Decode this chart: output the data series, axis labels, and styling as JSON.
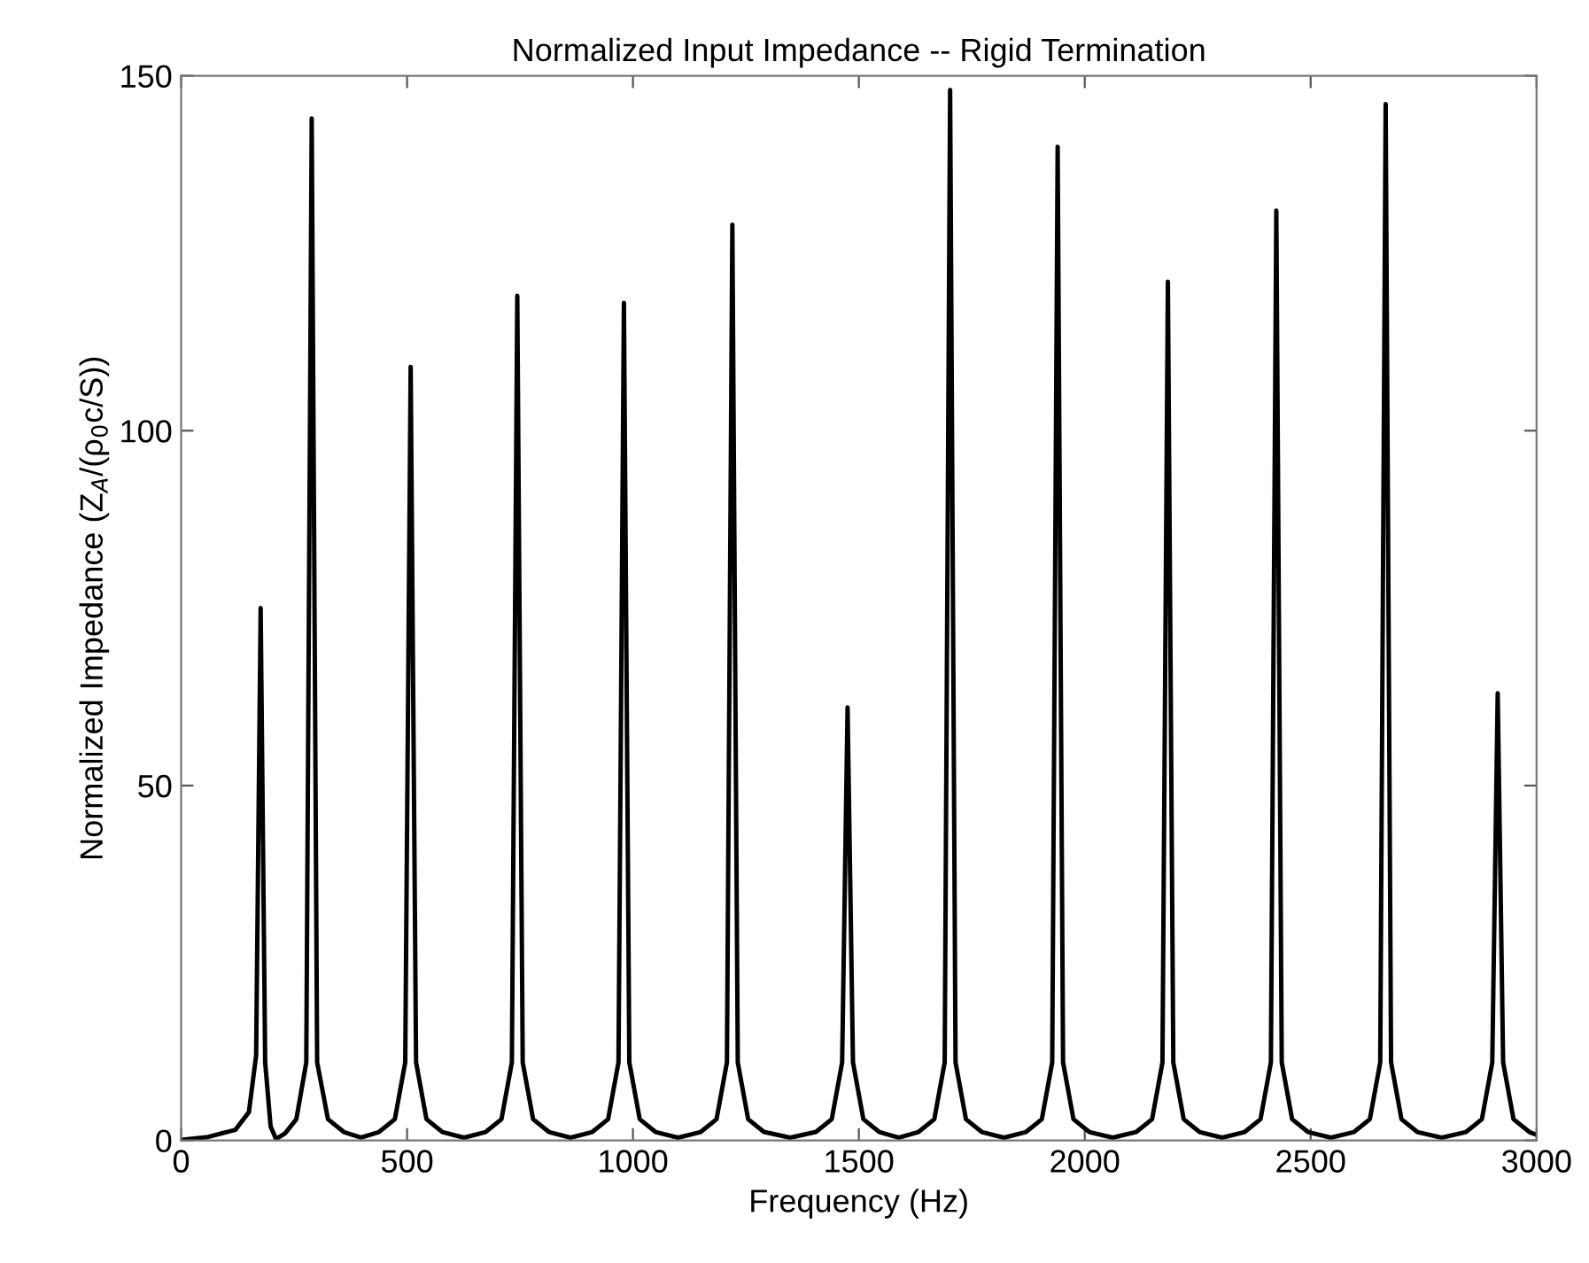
{
  "chart_data": {
    "type": "line",
    "title": "Normalized Input Impedance -- Rigid Termination",
    "xlabel": "Frequency (Hz)",
    "ylabel": "Normalized Impedance (Z$_{A}$/(ρ$_{0}$c/S))",
    "xlim": [
      0,
      3000
    ],
    "ylim": [
      0,
      150
    ],
    "xticks": [
      0,
      500,
      1000,
      1500,
      2000,
      2500,
      3000
    ],
    "yticks": [
      0,
      50,
      100,
      150
    ],
    "marker": "none",
    "line_style": "solid",
    "series": [
      {
        "color": "#000000",
        "x": [
          0,
          60,
          120,
          150,
          166,
          176,
          186,
          198,
          210,
          230,
          255,
          277,
          289,
          301,
          325,
          360,
          398,
          438,
          473,
          496,
          508,
          520,
          543,
          578,
          626,
          674,
          709,
          732,
          744,
          756,
          779,
          814,
          862,
          910,
          945,
          968,
          980,
          992,
          1015,
          1050,
          1100,
          1150,
          1185,
          1208,
          1220,
          1232,
          1255,
          1290,
          1348,
          1405,
          1440,
          1463,
          1475,
          1487,
          1510,
          1545,
          1588,
          1632,
          1667,
          1690,
          1702,
          1714,
          1737,
          1772,
          1821,
          1870,
          1905,
          1928,
          1940,
          1952,
          1975,
          2010,
          2062,
          2114,
          2149,
          2172,
          2184,
          2196,
          2219,
          2254,
          2304,
          2354,
          2389,
          2412,
          2424,
          2436,
          2459,
          2494,
          2545,
          2596,
          2631,
          2654,
          2666,
          2678,
          2701,
          2736,
          2790,
          2844,
          2879,
          2902,
          2914,
          2926,
          2949,
          2984,
          3000
        ],
        "values": [
          0.1,
          0.5,
          1.5,
          4,
          12,
          75,
          11,
          2,
          0.2,
          1,
          3,
          11,
          144,
          11,
          3,
          1.2,
          0.4,
          1.2,
          3,
          11,
          109,
          11,
          3,
          1.2,
          0.4,
          1.2,
          3,
          11,
          119,
          11,
          3,
          1.2,
          0.4,
          1.2,
          3,
          11,
          118,
          11,
          3,
          1.2,
          0.4,
          1.2,
          3,
          11,
          129,
          11,
          3,
          1.2,
          0.4,
          1.2,
          3,
          11,
          61,
          11,
          3,
          1.2,
          0.4,
          1.2,
          3,
          11,
          148,
          11,
          3,
          1.2,
          0.4,
          1.2,
          3,
          11,
          140,
          11,
          3,
          1.2,
          0.4,
          1.2,
          3,
          11,
          121,
          11,
          3,
          1.2,
          0.4,
          1.2,
          3,
          11,
          131,
          11,
          3,
          1.2,
          0.4,
          1.2,
          3,
          11,
          146,
          11,
          3,
          1.2,
          0.4,
          1.2,
          3,
          11,
          63,
          11,
          3,
          1.2,
          0.8
        ]
      }
    ]
  }
}
